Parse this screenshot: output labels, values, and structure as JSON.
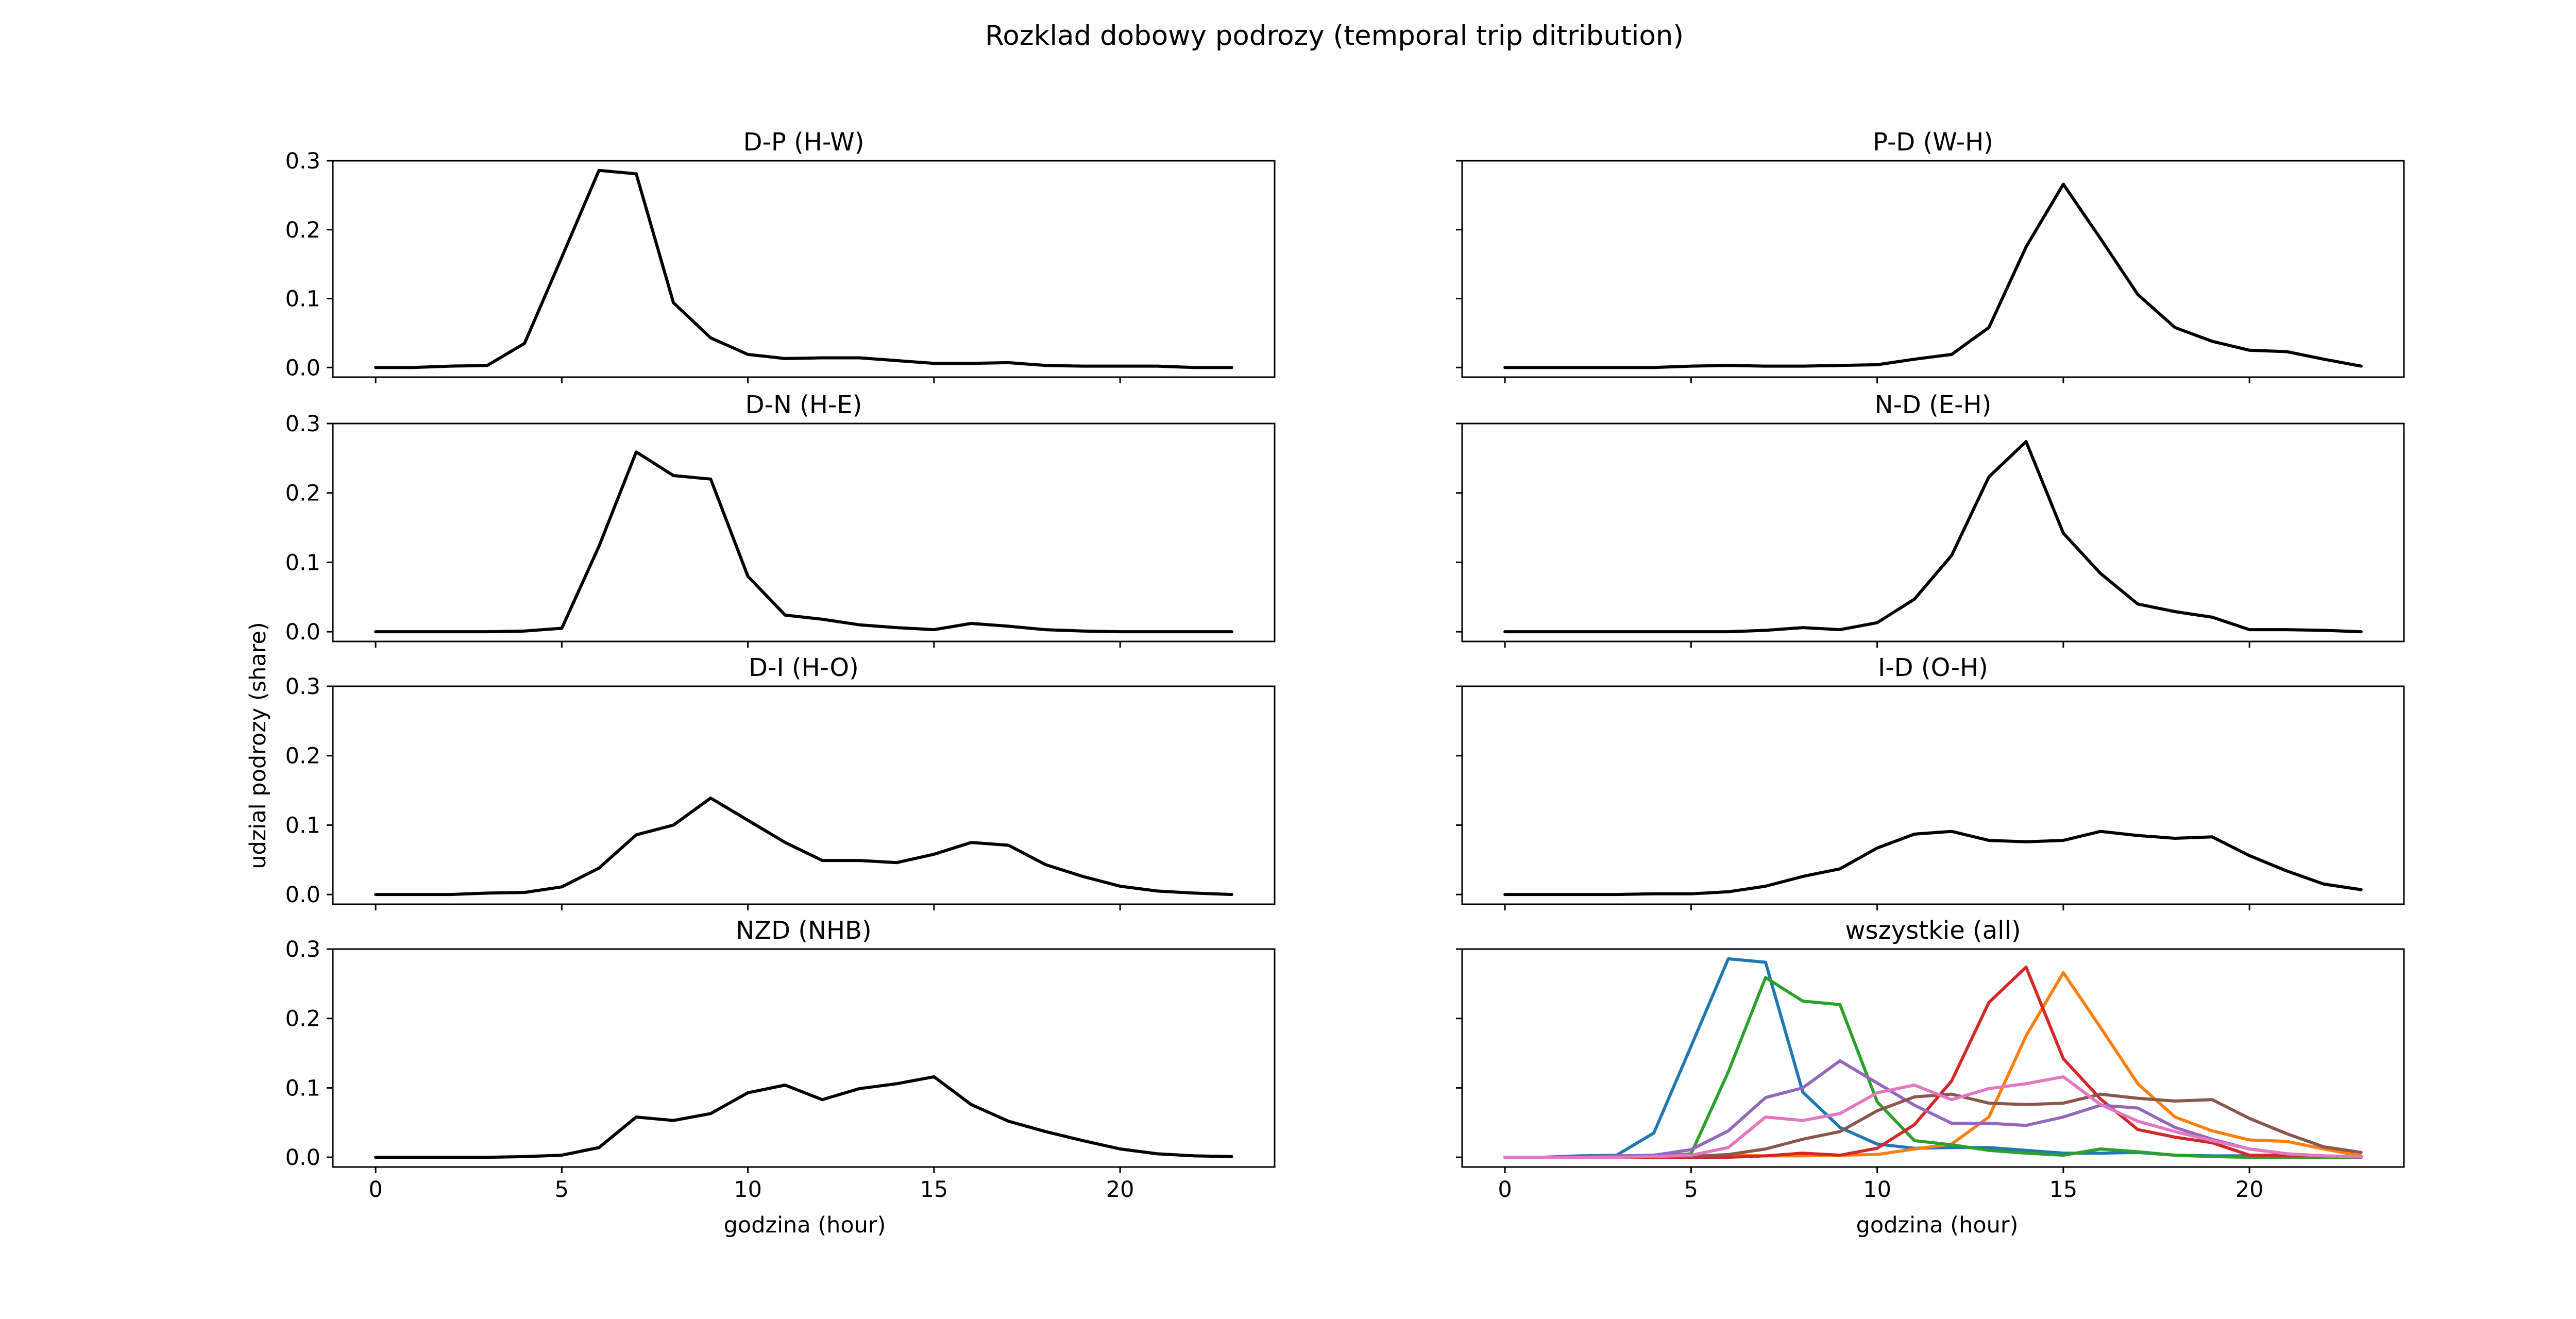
{
  "figure": {
    "suptitle": "Rozklad dobowy podrozy (temporal trip ditribution)",
    "ylabel": "udzial podrozy (share)",
    "xlabel": "godzina (hour)"
  },
  "chart_data": [
    {
      "type": "line",
      "title": "D-P (H-W)",
      "x": [
        0,
        1,
        2,
        3,
        4,
        5,
        6,
        7,
        8,
        9,
        10,
        11,
        12,
        13,
        14,
        15,
        16,
        17,
        18,
        19,
        20,
        21,
        22,
        23
      ],
      "series": [
        {
          "color": "#000000",
          "values": [
            0.0,
            0.0,
            0.002,
            0.003,
            0.035,
            0.16,
            0.286,
            0.281,
            0.094,
            0.043,
            0.019,
            0.013,
            0.014,
            0.014,
            0.01,
            0.006,
            0.006,
            0.007,
            0.003,
            0.002,
            0.002,
            0.002,
            0.0,
            0.0
          ]
        }
      ],
      "xticks": [
        0,
        5,
        10,
        15,
        20
      ],
      "yticks": [
        0.0,
        0.1,
        0.2,
        0.3
      ],
      "xlim": [
        -1.15,
        24.15
      ],
      "ylim": [
        -0.014,
        0.3
      ]
    },
    {
      "type": "line",
      "title": "P-D (W-H)",
      "x": [
        0,
        1,
        2,
        3,
        4,
        5,
        6,
        7,
        8,
        9,
        10,
        11,
        12,
        13,
        14,
        15,
        16,
        17,
        18,
        19,
        20,
        21,
        22,
        23
      ],
      "series": [
        {
          "color": "#000000",
          "values": [
            0.0,
            0.0,
            0.0,
            0.0,
            0.0,
            0.002,
            0.003,
            0.002,
            0.002,
            0.003,
            0.004,
            0.012,
            0.019,
            0.058,
            0.175,
            0.266,
            0.187,
            0.106,
            0.058,
            0.038,
            0.025,
            0.023,
            0.012,
            0.002
          ]
        }
      ],
      "xticks": [
        0,
        5,
        10,
        15,
        20
      ],
      "yticks": [
        0.0,
        0.1,
        0.2,
        0.3
      ],
      "xlim": [
        -1.15,
        24.15
      ],
      "ylim": [
        -0.014,
        0.3
      ]
    },
    {
      "type": "line",
      "title": "D-N (H-E)",
      "x": [
        0,
        1,
        2,
        3,
        4,
        5,
        6,
        7,
        8,
        9,
        10,
        11,
        12,
        13,
        14,
        15,
        16,
        17,
        18,
        19,
        20,
        21,
        22,
        23
      ],
      "series": [
        {
          "color": "#000000",
          "values": [
            0.0,
            0.0,
            0.0,
            0.0,
            0.001,
            0.005,
            0.123,
            0.259,
            0.225,
            0.22,
            0.08,
            0.024,
            0.018,
            0.01,
            0.006,
            0.003,
            0.012,
            0.008,
            0.003,
            0.001,
            0.0,
            0.0,
            0.0,
            0.0
          ]
        }
      ],
      "xticks": [
        0,
        5,
        10,
        15,
        20
      ],
      "yticks": [
        0.0,
        0.1,
        0.2,
        0.3
      ],
      "xlim": [
        -1.15,
        24.15
      ],
      "ylim": [
        -0.014,
        0.3
      ]
    },
    {
      "type": "line",
      "title": "N-D (E-H)",
      "x": [
        0,
        1,
        2,
        3,
        4,
        5,
        6,
        7,
        8,
        9,
        10,
        11,
        12,
        13,
        14,
        15,
        16,
        17,
        18,
        19,
        20,
        21,
        22,
        23
      ],
      "series": [
        {
          "color": "#000000",
          "values": [
            0.0,
            0.0,
            0.0,
            0.0,
            0.0,
            0.0,
            0.0,
            0.002,
            0.006,
            0.003,
            0.013,
            0.047,
            0.11,
            0.223,
            0.274,
            0.142,
            0.084,
            0.04,
            0.029,
            0.021,
            0.003,
            0.003,
            0.002,
            0.0
          ]
        }
      ],
      "xticks": [
        0,
        5,
        10,
        15,
        20
      ],
      "yticks": [
        0.0,
        0.1,
        0.2,
        0.3
      ],
      "xlim": [
        -1.15,
        24.15
      ],
      "ylim": [
        -0.014,
        0.3
      ]
    },
    {
      "type": "line",
      "title": "D-I (H-O)",
      "x": [
        0,
        1,
        2,
        3,
        4,
        5,
        6,
        7,
        8,
        9,
        10,
        11,
        12,
        13,
        14,
        15,
        16,
        17,
        18,
        19,
        20,
        21,
        22,
        23
      ],
      "series": [
        {
          "color": "#000000",
          "values": [
            0.0,
            0.0,
            0.0,
            0.002,
            0.003,
            0.011,
            0.038,
            0.086,
            0.1,
            0.139,
            0.107,
            0.075,
            0.049,
            0.049,
            0.046,
            0.058,
            0.075,
            0.071,
            0.043,
            0.026,
            0.012,
            0.005,
            0.002,
            0.0
          ]
        }
      ],
      "xticks": [
        0,
        5,
        10,
        15,
        20
      ],
      "yticks": [
        0.0,
        0.1,
        0.2,
        0.3
      ],
      "xlim": [
        -1.15,
        24.15
      ],
      "ylim": [
        -0.014,
        0.3
      ]
    },
    {
      "type": "line",
      "title": "I-D (O-H)",
      "x": [
        0,
        1,
        2,
        3,
        4,
        5,
        6,
        7,
        8,
        9,
        10,
        11,
        12,
        13,
        14,
        15,
        16,
        17,
        18,
        19,
        20,
        21,
        22,
        23
      ],
      "series": [
        {
          "color": "#000000",
          "values": [
            0.0,
            0.0,
            0.0,
            0.0,
            0.001,
            0.001,
            0.004,
            0.012,
            0.026,
            0.037,
            0.067,
            0.087,
            0.091,
            0.078,
            0.076,
            0.078,
            0.091,
            0.085,
            0.081,
            0.083,
            0.056,
            0.034,
            0.015,
            0.007
          ]
        }
      ],
      "xticks": [
        0,
        5,
        10,
        15,
        20
      ],
      "yticks": [
        0.0,
        0.1,
        0.2,
        0.3
      ],
      "xlim": [
        -1.15,
        24.15
      ],
      "ylim": [
        -0.014,
        0.3
      ]
    },
    {
      "type": "line",
      "title": "NZD (NHB)",
      "x": [
        0,
        1,
        2,
        3,
        4,
        5,
        6,
        7,
        8,
        9,
        10,
        11,
        12,
        13,
        14,
        15,
        16,
        17,
        18,
        19,
        20,
        21,
        22,
        23
      ],
      "series": [
        {
          "color": "#000000",
          "values": [
            0.0,
            0.0,
            0.0,
            0.0,
            0.001,
            0.003,
            0.014,
            0.058,
            0.053,
            0.063,
            0.093,
            0.104,
            0.083,
            0.099,
            0.106,
            0.116,
            0.076,
            0.052,
            0.037,
            0.024,
            0.012,
            0.005,
            0.002,
            0.001
          ]
        }
      ],
      "xticks": [
        0,
        5,
        10,
        15,
        20
      ],
      "yticks": [
        0.0,
        0.1,
        0.2,
        0.3
      ],
      "xlim": [
        -1.15,
        24.15
      ],
      "ylim": [
        -0.014,
        0.3
      ]
    },
    {
      "type": "line",
      "title": "wszystkie (all)",
      "x": [
        0,
        1,
        2,
        3,
        4,
        5,
        6,
        7,
        8,
        9,
        10,
        11,
        12,
        13,
        14,
        15,
        16,
        17,
        18,
        19,
        20,
        21,
        22,
        23
      ],
      "series": [
        {
          "color": "#1f77b4",
          "values": [
            0.0,
            0.0,
            0.002,
            0.003,
            0.035,
            0.16,
            0.286,
            0.281,
            0.094,
            0.043,
            0.019,
            0.013,
            0.014,
            0.014,
            0.01,
            0.006,
            0.006,
            0.007,
            0.003,
            0.002,
            0.002,
            0.002,
            0.0,
            0.0
          ]
        },
        {
          "color": "#ff7f0e",
          "values": [
            0.0,
            0.0,
            0.0,
            0.0,
            0.0,
            0.002,
            0.003,
            0.002,
            0.002,
            0.003,
            0.004,
            0.012,
            0.019,
            0.058,
            0.175,
            0.266,
            0.187,
            0.106,
            0.058,
            0.038,
            0.025,
            0.023,
            0.012,
            0.002
          ]
        },
        {
          "color": "#2ca02c",
          "values": [
            0.0,
            0.0,
            0.0,
            0.0,
            0.001,
            0.005,
            0.123,
            0.259,
            0.225,
            0.22,
            0.08,
            0.024,
            0.018,
            0.01,
            0.006,
            0.003,
            0.012,
            0.008,
            0.003,
            0.001,
            0.0,
            0.0,
            0.0,
            0.0
          ]
        },
        {
          "color": "#d62728",
          "values": [
            0.0,
            0.0,
            0.0,
            0.0,
            0.0,
            0.0,
            0.0,
            0.002,
            0.006,
            0.003,
            0.013,
            0.047,
            0.11,
            0.223,
            0.274,
            0.142,
            0.084,
            0.04,
            0.029,
            0.021,
            0.003,
            0.003,
            0.002,
            0.0
          ]
        },
        {
          "color": "#9467bd",
          "values": [
            0.0,
            0.0,
            0.0,
            0.002,
            0.003,
            0.011,
            0.038,
            0.086,
            0.1,
            0.139,
            0.107,
            0.075,
            0.049,
            0.049,
            0.046,
            0.058,
            0.075,
            0.071,
            0.043,
            0.026,
            0.012,
            0.005,
            0.002,
            0.0
          ]
        },
        {
          "color": "#8c564b",
          "values": [
            0.0,
            0.0,
            0.0,
            0.0,
            0.001,
            0.001,
            0.004,
            0.012,
            0.026,
            0.037,
            0.067,
            0.087,
            0.091,
            0.078,
            0.076,
            0.078,
            0.091,
            0.085,
            0.081,
            0.083,
            0.056,
            0.034,
            0.015,
            0.007
          ]
        },
        {
          "color": "#e377c2",
          "values": [
            0.0,
            0.0,
            0.0,
            0.0,
            0.001,
            0.003,
            0.014,
            0.058,
            0.053,
            0.063,
            0.093,
            0.104,
            0.083,
            0.099,
            0.106,
            0.116,
            0.076,
            0.052,
            0.037,
            0.024,
            0.012,
            0.005,
            0.002,
            0.001
          ]
        }
      ],
      "xticks": [
        0,
        5,
        10,
        15,
        20
      ],
      "yticks": [
        0.0,
        0.1,
        0.2,
        0.3
      ],
      "xlim": [
        -1.15,
        24.15
      ],
      "ylim": [
        -0.014,
        0.3
      ]
    }
  ]
}
